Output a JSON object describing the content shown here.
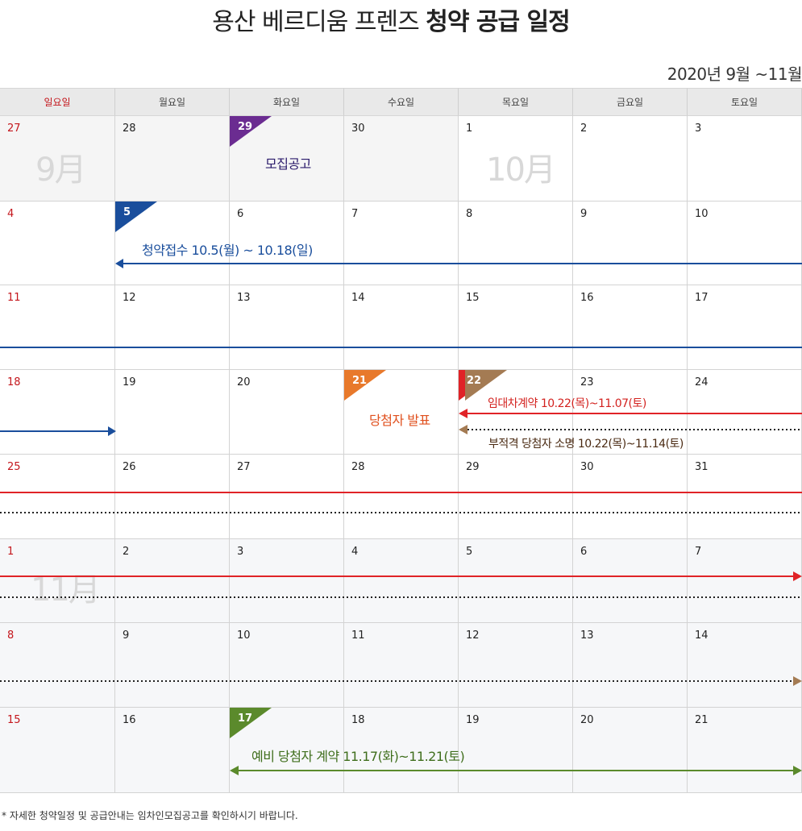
{
  "title": {
    "light": "용산 베르디움 프렌즈 ",
    "bold": "청약 공급 일정"
  },
  "period": "2020년  9월 ~11월",
  "weekdays": [
    "일요일",
    "월요일",
    "화요일",
    "수요일",
    "목요일",
    "금요일",
    "토요일"
  ],
  "weeks": [
    [
      "27",
      "28",
      "29",
      "30",
      "1",
      "2",
      "3"
    ],
    [
      "4",
      "5",
      "6",
      "7",
      "8",
      "9",
      "10"
    ],
    [
      "11",
      "12",
      "13",
      "14",
      "15",
      "16",
      "17"
    ],
    [
      "18",
      "19",
      "20",
      "21",
      "22",
      "23",
      "24"
    ],
    [
      "25",
      "26",
      "27",
      "28",
      "29",
      "30",
      "31"
    ],
    [
      "1",
      "2",
      "3",
      "4",
      "5",
      "6",
      "7"
    ],
    [
      "8",
      "9",
      "10",
      "11",
      "12",
      "13",
      "14"
    ],
    [
      "15",
      "16",
      "17",
      "18",
      "19",
      "20",
      "21"
    ]
  ],
  "month_labels": {
    "sep": "9月",
    "oct": "10月",
    "nov": "11月"
  },
  "events": {
    "notice": "모집공고",
    "application": "청약접수 10.5(월) ~ 10.18(일)",
    "winners": "당첨자 발표",
    "lease_contract": "임대차계약 10.22(목)~11.07(토)",
    "ineligible_notice": "부적격 당첨자 소명 10.22(목)~11.14(토)",
    "reserve_contract": "예비 당첨자 계약 11.17(화)~11.21(토)"
  },
  "colors": {
    "purple": "#6b2c91",
    "blue": "#1a4e9c",
    "orange": "#e8792b",
    "red": "#e02327",
    "brown": "#a47b53",
    "green": "#5b8a2c"
  },
  "footnote": "* 자세한 청약일정 및 공급안내는 임차인모집공고를 확인하시기 바랍니다."
}
